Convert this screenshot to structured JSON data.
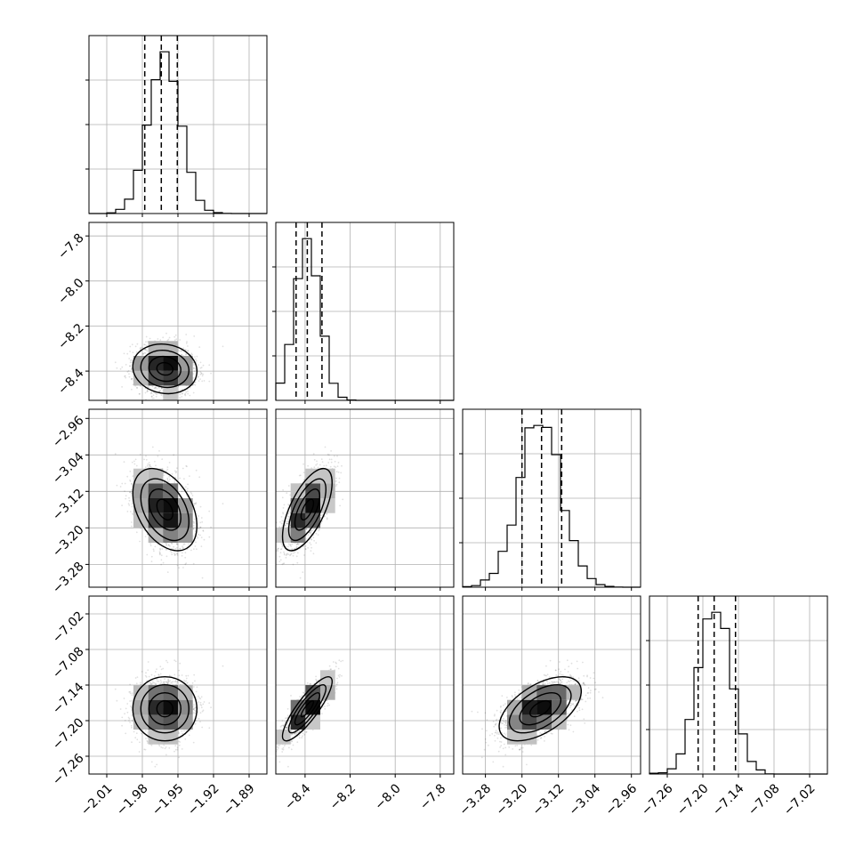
{
  "chart_data": {
    "type": "corner",
    "quantiles": [
      0.16,
      0.5,
      0.84
    ],
    "colors": {
      "ink": "#000000",
      "grid": "#b0b0b0",
      "background": "#ffffff"
    },
    "grid": true,
    "parameters": [
      {
        "range": [
          -2.025,
          -1.875
        ],
        "ticks": [
          -2.01,
          -1.98,
          -1.95,
          -1.92,
          -1.89
        ],
        "tick_labels": [
          "−2.01",
          "−1.98",
          "−1.95",
          "−1.92",
          "−1.89"
        ],
        "mean": -1.961,
        "sd": 0.0135,
        "quantile_values": [
          -1.978,
          -1.964,
          -1.9505
        ]
      },
      {
        "range": [
          -8.53,
          -7.74
        ],
        "ticks": [
          -8.4,
          -8.2,
          -8.0,
          -7.8
        ],
        "tick_labels": [
          "−8.4",
          "−8.2",
          "−8.0",
          "−7.8"
        ],
        "mean": -8.39,
        "sd": 0.055,
        "quantile_values": [
          -8.44,
          -8.39,
          -8.325
        ]
      },
      {
        "range": [
          -3.33,
          -2.94
        ],
        "ticks": [
          -3.28,
          -3.2,
          -3.12,
          -3.04,
          -2.96
        ],
        "tick_labels": [
          "−3.28",
          "−3.20",
          "−3.12",
          "−3.04",
          "−2.96"
        ],
        "mean": -3.16,
        "sd": 0.045,
        "quantile_values": [
          -3.2,
          -3.157,
          -3.113
        ]
      },
      {
        "range": [
          -7.29,
          -6.99
        ],
        "ticks": [
          -7.26,
          -7.2,
          -7.14,
          -7.08,
          -7.02
        ],
        "tick_labels": [
          "−7.26",
          "−7.20",
          "−7.14",
          "−7.08",
          "−7.02"
        ],
        "mean": -7.18,
        "sd": 0.027,
        "quantile_values": [
          -7.208,
          -7.181,
          -7.145
        ]
      }
    ],
    "correlations": [
      [
        1.0,
        -0.1,
        -0.4,
        0.0
      ],
      [
        -0.1,
        1.0,
        0.65,
        0.85
      ],
      [
        -0.4,
        0.65,
        1.0,
        0.55
      ],
      [
        0.0,
        0.85,
        0.55,
        1.0
      ]
    ],
    "histogram_bins": 20,
    "scatter_points_per_panel": 1500
  }
}
